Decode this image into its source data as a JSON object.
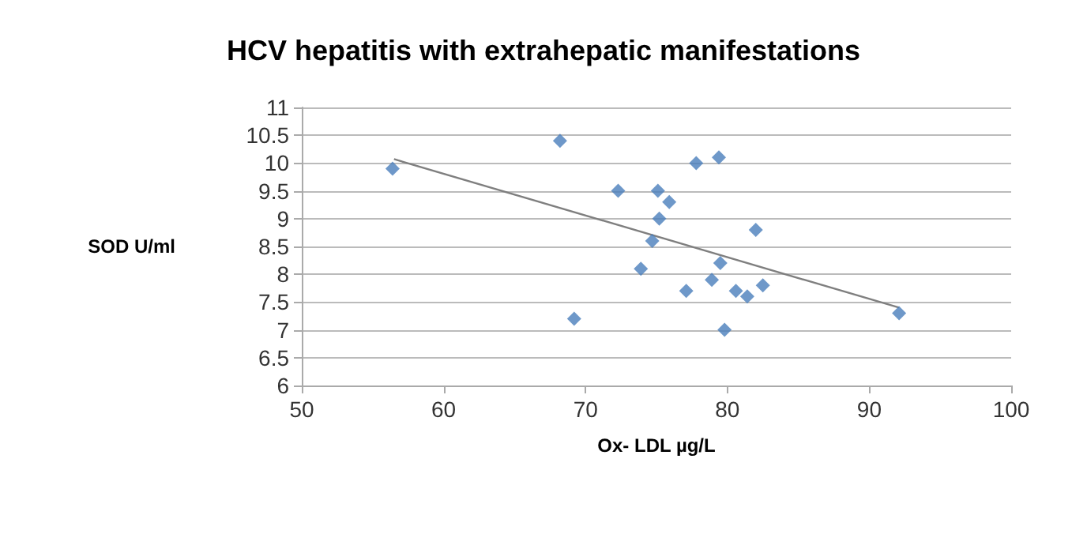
{
  "chart_data": {
    "type": "scatter",
    "title": "HCV hepatitis with extrahepatic manifestations",
    "xlabel": "Ox- LDL µg/L",
    "ylabel": "SOD U/ml",
    "series": [
      {
        "color": "#4a7ebb",
        "marker": "diamond",
        "x": [
          56.4,
          68.2,
          69.2,
          72.3,
          73.9,
          74.7,
          75.1,
          75.2,
          75.9,
          77.1,
          77.8,
          78.9,
          79.4,
          79.5,
          79.8,
          80.6,
          81.4,
          82.0,
          82.5,
          92.1
        ],
        "values": [
          9.9,
          10.4,
          7.2,
          9.5,
          8.1,
          8.6,
          9.5,
          9.0,
          9.3,
          7.7,
          10.0,
          7.9,
          10.1,
          8.2,
          7.0,
          7.7,
          7.6,
          8.8,
          7.8,
          7.3
        ]
      },
      {
        "type": "line",
        "color": "#7f7f7f",
        "marker": "none",
        "x": [
          56.5,
          92.1
        ],
        "values": [
          10.07,
          7.4
        ]
      }
    ],
    "xlim": [
      50,
      100
    ],
    "xticks": [
      50,
      60,
      70,
      80,
      90,
      100
    ],
    "ylim": [
      6,
      11
    ],
    "yticks": [
      6,
      6.5,
      7,
      7.5,
      8,
      8.5,
      9,
      9.5,
      10,
      10.5,
      11
    ],
    "grid": "y"
  }
}
